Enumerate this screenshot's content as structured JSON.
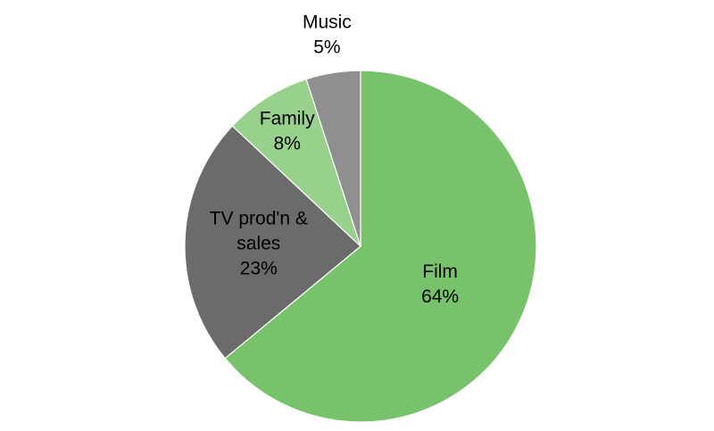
{
  "chart_data": {
    "type": "pie",
    "title": "",
    "start": "12 o'clock",
    "direction": "clockwise",
    "slices": [
      {
        "label": "Film",
        "label_lines": [
          "Film"
        ],
        "value": 64,
        "value_label": "64%",
        "color": "#77c26b"
      },
      {
        "label": "TV prod'n & sales",
        "label_lines": [
          "TV prod'n &",
          "sales"
        ],
        "value": 23,
        "value_label": "23%",
        "color": "#6b6b6b"
      },
      {
        "label": "Family",
        "label_lines": [
          "Family"
        ],
        "value": 8,
        "value_label": "8%",
        "color": "#98d18c"
      },
      {
        "label": "Music",
        "label_lines": [
          "Music"
        ],
        "value": 5,
        "value_label": "5%",
        "color": "#8f8f8f"
      }
    ]
  }
}
